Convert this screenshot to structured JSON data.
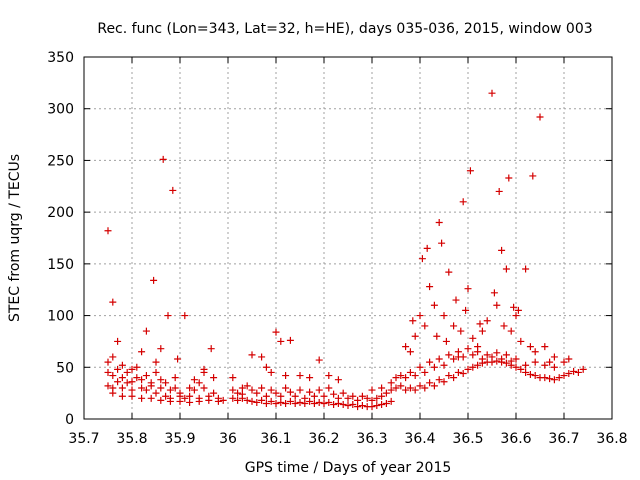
{
  "chart_data": {
    "type": "scatter",
    "title": "Rec. func (Lon=343, Lat=32, h=HE), days 035-036, 2015, window 003",
    "xlabel": "GPS time / Days of year 2015",
    "ylabel": "STEC from uqrg / TECUs",
    "xlim": [
      35.7,
      36.8
    ],
    "ylim": [
      0,
      350
    ],
    "xticks": [
      "35.7",
      "35.8",
      "35.9",
      "36",
      "36.1",
      "36.2",
      "36.3",
      "36.4",
      "36.5",
      "36.6",
      "36.7",
      "36.8"
    ],
    "yticks": [
      "0",
      "50",
      "100",
      "150",
      "200",
      "250",
      "300",
      "350"
    ],
    "grid": true,
    "marker": "+",
    "color": "#d40000",
    "points": [
      [
        35.75,
        182
      ],
      [
        35.76,
        113
      ],
      [
        35.77,
        75
      ],
      [
        35.75,
        55
      ],
      [
        35.76,
        60
      ],
      [
        35.78,
        52
      ],
      [
        35.8,
        48
      ],
      [
        35.82,
        65
      ],
      [
        35.83,
        85
      ],
      [
        35.845,
        134
      ],
      [
        35.85,
        55
      ],
      [
        35.86,
        68
      ],
      [
        35.865,
        251
      ],
      [
        35.875,
        100
      ],
      [
        35.885,
        221
      ],
      [
        35.895,
        58
      ],
      [
        35.91,
        100
      ],
      [
        35.94,
        35
      ],
      [
        35.95,
        48
      ],
      [
        35.965,
        68
      ],
      [
        35.97,
        40
      ],
      [
        35.75,
        32
      ],
      [
        35.76,
        30
      ],
      [
        35.77,
        36
      ],
      [
        35.78,
        30
      ],
      [
        35.79,
        35
      ],
      [
        35.8,
        28
      ],
      [
        35.81,
        40
      ],
      [
        35.82,
        30
      ],
      [
        35.83,
        28
      ],
      [
        35.84,
        35
      ],
      [
        35.85,
        25
      ],
      [
        35.86,
        38
      ],
      [
        35.87,
        22
      ],
      [
        35.88,
        20
      ],
      [
        35.89,
        30
      ],
      [
        35.9,
        22
      ],
      [
        35.91,
        20
      ],
      [
        35.92,
        22
      ],
      [
        35.93,
        28
      ],
      [
        35.94,
        20
      ],
      [
        35.95,
        30
      ],
      [
        35.96,
        22
      ],
      [
        35.97,
        25
      ],
      [
        35.98,
        20
      ],
      [
        35.99,
        18
      ],
      [
        35.75,
        45
      ],
      [
        35.76,
        42
      ],
      [
        35.77,
        48
      ],
      [
        35.78,
        40
      ],
      [
        35.79,
        45
      ],
      [
        35.8,
        36
      ],
      [
        35.81,
        50
      ],
      [
        35.82,
        38
      ],
      [
        35.83,
        42
      ],
      [
        35.84,
        32
      ],
      [
        35.85,
        45
      ],
      [
        35.86,
        30
      ],
      [
        35.87,
        35
      ],
      [
        35.88,
        28
      ],
      [
        35.89,
        40
      ],
      [
        35.9,
        25
      ],
      [
        35.92,
        30
      ],
      [
        35.93,
        38
      ],
      [
        35.95,
        45
      ],
      [
        35.76,
        25
      ],
      [
        35.78,
        22
      ],
      [
        35.8,
        22
      ],
      [
        35.82,
        20
      ],
      [
        35.84,
        20
      ],
      [
        35.86,
        18
      ],
      [
        35.88,
        17
      ],
      [
        35.9,
        17
      ],
      [
        35.92,
        16
      ],
      [
        35.94,
        17
      ],
      [
        35.96,
        18
      ],
      [
        35.98,
        17
      ],
      [
        36.01,
        40
      ],
      [
        36.03,
        30
      ],
      [
        36.05,
        62
      ],
      [
        36.07,
        60
      ],
      [
        36.08,
        50
      ],
      [
        36.09,
        45
      ],
      [
        36.1,
        84
      ],
      [
        36.11,
        75
      ],
      [
        36.12,
        42
      ],
      [
        36.13,
        76
      ],
      [
        36.15,
        42
      ],
      [
        36.17,
        40
      ],
      [
        36.19,
        57
      ],
      [
        36.21,
        42
      ],
      [
        36.23,
        38
      ],
      [
        36.01,
        28
      ],
      [
        36.02,
        25
      ],
      [
        36.03,
        24
      ],
      [
        36.04,
        32
      ],
      [
        36.05,
        28
      ],
      [
        36.06,
        25
      ],
      [
        36.07,
        30
      ],
      [
        36.08,
        22
      ],
      [
        36.09,
        28
      ],
      [
        36.1,
        25
      ],
      [
        36.11,
        22
      ],
      [
        36.12,
        30
      ],
      [
        36.13,
        26
      ],
      [
        36.14,
        22
      ],
      [
        36.15,
        28
      ],
      [
        36.16,
        20
      ],
      [
        36.17,
        26
      ],
      [
        36.18,
        22
      ],
      [
        36.19,
        28
      ],
      [
        36.2,
        22
      ],
      [
        36.21,
        30
      ],
      [
        36.22,
        24
      ],
      [
        36.23,
        20
      ],
      [
        36.24,
        25
      ],
      [
        36.25,
        20
      ],
      [
        36.26,
        22
      ],
      [
        36.27,
        18
      ],
      [
        36.28,
        22
      ],
      [
        36.01,
        20
      ],
      [
        36.02,
        18
      ],
      [
        36.03,
        20
      ],
      [
        36.04,
        18
      ],
      [
        36.05,
        17
      ],
      [
        36.06,
        16
      ],
      [
        36.07,
        18
      ],
      [
        36.08,
        15
      ],
      [
        36.09,
        17
      ],
      [
        36.1,
        15
      ],
      [
        36.11,
        16
      ],
      [
        36.12,
        15
      ],
      [
        36.13,
        17
      ],
      [
        36.14,
        15
      ],
      [
        36.15,
        16
      ],
      [
        36.16,
        15
      ],
      [
        36.17,
        17
      ],
      [
        36.18,
        15
      ],
      [
        36.19,
        16
      ],
      [
        36.2,
        15
      ],
      [
        36.21,
        16
      ],
      [
        36.22,
        14
      ],
      [
        36.23,
        15
      ],
      [
        36.24,
        14
      ],
      [
        36.25,
        13
      ],
      [
        36.26,
        14
      ],
      [
        36.27,
        12
      ],
      [
        36.28,
        13
      ],
      [
        36.29,
        12
      ],
      [
        36.3,
        12
      ],
      [
        36.31,
        13
      ],
      [
        36.32,
        14
      ],
      [
        36.33,
        15
      ],
      [
        36.34,
        17
      ],
      [
        36.29,
        20
      ],
      [
        36.3,
        18
      ],
      [
        36.31,
        20
      ],
      [
        36.32,
        22
      ],
      [
        36.33,
        25
      ],
      [
        36.34,
        28
      ],
      [
        36.35,
        30
      ],
      [
        36.36,
        32
      ],
      [
        36.3,
        28
      ],
      [
        36.32,
        30
      ],
      [
        36.34,
        35
      ],
      [
        36.35,
        40
      ],
      [
        36.36,
        42
      ],
      [
        36.37,
        70
      ],
      [
        36.38,
        65
      ],
      [
        36.385,
        95
      ],
      [
        36.39,
        80
      ],
      [
        36.4,
        100
      ],
      [
        36.405,
        155
      ],
      [
        36.41,
        90
      ],
      [
        36.415,
        165
      ],
      [
        36.42,
        128
      ],
      [
        36.43,
        110
      ],
      [
        36.435,
        80
      ],
      [
        36.44,
        190
      ],
      [
        36.445,
        170
      ],
      [
        36.45,
        100
      ],
      [
        36.455,
        75
      ],
      [
        36.46,
        142
      ],
      [
        36.47,
        90
      ],
      [
        36.475,
        115
      ],
      [
        36.48,
        60
      ],
      [
        36.485,
        85
      ],
      [
        36.49,
        210
      ],
      [
        36.495,
        105
      ],
      [
        36.5,
        126
      ],
      [
        36.505,
        240
      ],
      [
        36.51,
        78
      ],
      [
        36.52,
        70
      ],
      [
        36.525,
        92
      ],
      [
        36.53,
        85
      ],
      [
        36.54,
        95
      ],
      [
        36.55,
        315
      ],
      [
        36.555,
        122
      ],
      [
        36.56,
        110
      ],
      [
        36.565,
        220
      ],
      [
        36.57,
        163
      ],
      [
        36.575,
        90
      ],
      [
        36.58,
        145
      ],
      [
        36.585,
        233
      ],
      [
        36.59,
        85
      ],
      [
        36.595,
        108
      ],
      [
        36.6,
        100
      ],
      [
        36.605,
        105
      ],
      [
        36.61,
        75
      ],
      [
        36.62,
        145
      ],
      [
        36.63,
        70
      ],
      [
        36.635,
        235
      ],
      [
        36.64,
        65
      ],
      [
        36.65,
        292
      ],
      [
        36.66,
        70
      ],
      [
        36.67,
        55
      ],
      [
        36.68,
        60
      ],
      [
        36.37,
        28
      ],
      [
        36.38,
        30
      ],
      [
        36.39,
        28
      ],
      [
        36.4,
        32
      ],
      [
        36.41,
        30
      ],
      [
        36.42,
        35
      ],
      [
        36.43,
        32
      ],
      [
        36.44,
        38
      ],
      [
        36.45,
        36
      ],
      [
        36.46,
        42
      ],
      [
        36.47,
        40
      ],
      [
        36.48,
        45
      ],
      [
        36.49,
        44
      ],
      [
        36.5,
        48
      ],
      [
        36.51,
        50
      ],
      [
        36.52,
        52
      ],
      [
        36.53,
        54
      ],
      [
        36.54,
        55
      ],
      [
        36.55,
        55
      ],
      [
        36.56,
        56
      ],
      [
        36.57,
        55
      ],
      [
        36.58,
        54
      ],
      [
        36.59,
        52
      ],
      [
        36.6,
        50
      ],
      [
        36.61,
        48
      ],
      [
        36.62,
        45
      ],
      [
        36.63,
        43
      ],
      [
        36.64,
        42
      ],
      [
        36.65,
        40
      ],
      [
        36.66,
        40
      ],
      [
        36.67,
        39
      ],
      [
        36.68,
        38
      ],
      [
        36.69,
        40
      ],
      [
        36.7,
        42
      ],
      [
        36.71,
        44
      ],
      [
        36.72,
        46
      ],
      [
        36.37,
        40
      ],
      [
        36.38,
        45
      ],
      [
        36.39,
        42
      ],
      [
        36.4,
        50
      ],
      [
        36.41,
        45
      ],
      [
        36.42,
        55
      ],
      [
        36.43,
        50
      ],
      [
        36.44,
        58
      ],
      [
        36.45,
        52
      ],
      [
        36.46,
        62
      ],
      [
        36.47,
        58
      ],
      [
        36.48,
        65
      ],
      [
        36.49,
        60
      ],
      [
        36.5,
        68
      ],
      [
        36.51,
        62
      ],
      [
        36.52,
        65
      ],
      [
        36.53,
        58
      ],
      [
        36.54,
        62
      ],
      [
        36.55,
        60
      ],
      [
        36.56,
        64
      ],
      [
        36.57,
        58
      ],
      [
        36.58,
        62
      ],
      [
        36.59,
        56
      ],
      [
        36.6,
        58
      ],
      [
        36.62,
        52
      ],
      [
        36.64,
        55
      ],
      [
        36.66,
        52
      ],
      [
        36.68,
        50
      ],
      [
        36.7,
        55
      ],
      [
        36.71,
        58
      ],
      [
        36.73,
        45
      ],
      [
        36.74,
        48
      ]
    ]
  }
}
